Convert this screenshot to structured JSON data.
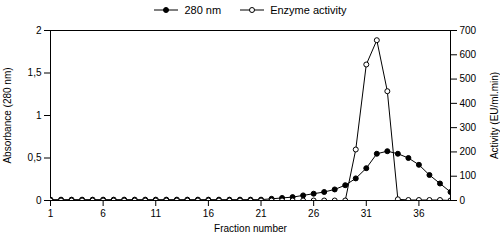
{
  "chart_data": {
    "type": "line",
    "x": [
      1,
      2,
      3,
      4,
      5,
      6,
      7,
      8,
      9,
      10,
      11,
      12,
      13,
      14,
      15,
      16,
      17,
      18,
      19,
      20,
      21,
      22,
      23,
      24,
      25,
      26,
      27,
      28,
      29,
      30,
      31,
      32,
      33,
      34,
      35,
      36,
      37,
      38,
      39
    ],
    "xlabel": "Fraction number",
    "ylabel": "Absorbance (280 nm)",
    "y2label": "Activity (EU/ml.min)",
    "xlim": [
      1,
      39
    ],
    "xticks": [
      1,
      6,
      11,
      16,
      21,
      26,
      31,
      36
    ],
    "ylim": [
      0,
      2
    ],
    "yticks": [
      0,
      {
        "value": 0.5,
        "label": "0,5"
      },
      1,
      {
        "value": 1.5,
        "label": "1,5"
      },
      2
    ],
    "y2lim": [
      0,
      700
    ],
    "y2ticks": [
      0,
      100,
      200,
      300,
      400,
      500,
      600,
      700
    ],
    "grid": false,
    "legend": "top",
    "series": [
      {
        "name": "280 nm",
        "color": "#000000",
        "marker": "filled",
        "values": [
          0.01,
          0.01,
          0.01,
          0.01,
          0.01,
          0.01,
          0.01,
          0.01,
          0.01,
          0.01,
          0.01,
          0.01,
          0.01,
          0.01,
          0.01,
          0.01,
          0.01,
          0.01,
          0.01,
          0.01,
          0.01,
          0.02,
          0.03,
          0.04,
          0.06,
          0.08,
          0.1,
          0.13,
          0.18,
          0.26,
          0.38,
          0.55,
          0.58,
          0.55,
          0.5,
          0.42,
          0.3,
          0.2,
          0.1
        ]
      },
      {
        "name": "Enzyme activity",
        "color": "#000000",
        "marker": "open",
        "axis": "y2",
        "values": [
          0,
          0,
          0,
          0,
          0,
          0,
          0,
          0,
          0,
          0,
          0,
          0,
          0,
          0,
          0,
          0,
          0,
          0,
          0,
          0,
          0,
          0,
          0,
          0,
          0,
          0,
          0,
          0,
          0,
          210,
          560,
          660,
          450,
          5,
          2,
          2,
          2,
          2,
          0
        ]
      }
    ]
  }
}
